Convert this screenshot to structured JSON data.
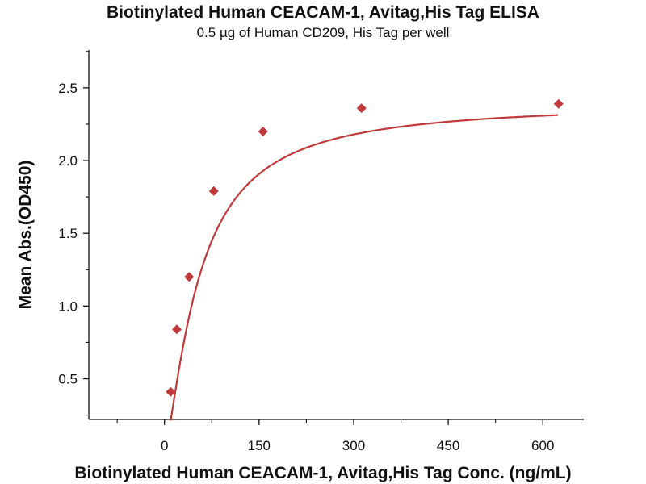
{
  "chart_data": {
    "type": "scatter",
    "title": "Biotinylated Human CEACAM-1, Avitag,His Tag ELISA",
    "subtitle": "0.5 µg of Human CD209, His Tag per well",
    "xlabel": "Biotinylated Human CEACAM-1, Avitag,His Tag Conc. (ng/mL)",
    "ylabel": "Mean Abs.(OD450)",
    "xlim": [
      -120,
      665
    ],
    "ylim": [
      0.22,
      2.76
    ],
    "xticks": [
      0,
      150,
      300,
      450,
      600
    ],
    "xtick_labels": [
      "0",
      "150",
      "300",
      "450",
      "600"
    ],
    "yticks": [
      0.5,
      1.0,
      1.5,
      2.0,
      2.5
    ],
    "ytick_labels": [
      "0.5",
      "1.0",
      "1.5",
      "2.0",
      "2.5"
    ],
    "grid": false,
    "legend": "none",
    "series": [
      {
        "marker": "diamond",
        "color": "#C0393B",
        "x": [
          9.77,
          19.53,
          39.06,
          78.13,
          156.25,
          312.5,
          625
        ],
        "y": [
          0.41,
          0.84,
          1.2,
          1.79,
          2.2,
          2.36,
          2.39
        ]
      }
    ],
    "fit_curve": {
      "color": "#C0393B"
    }
  }
}
